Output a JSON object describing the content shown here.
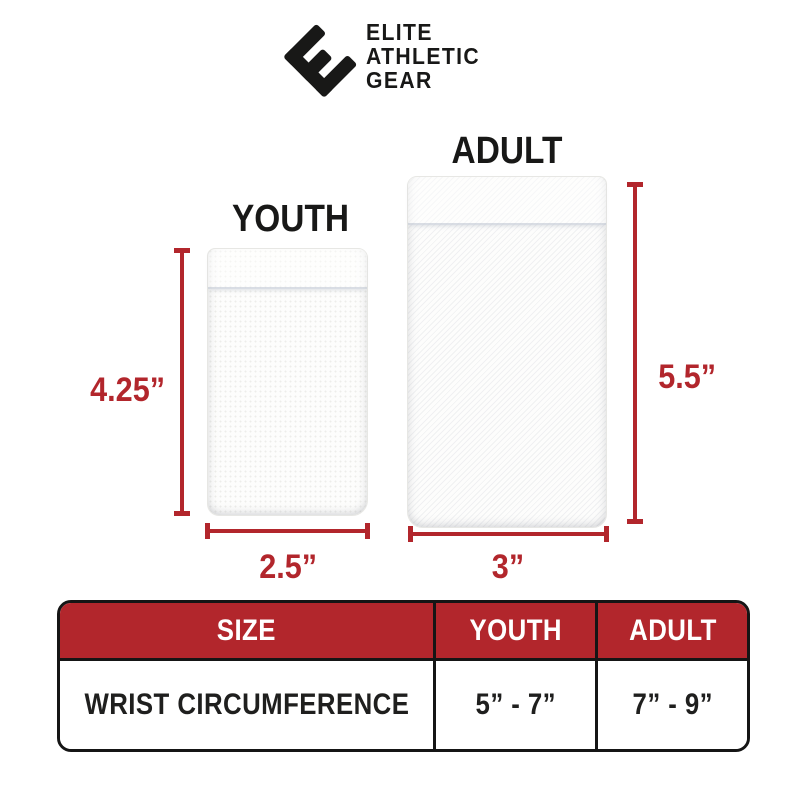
{
  "brand": {
    "icon": "elite-e-mark",
    "name_lines": [
      "ELITE",
      "ATHLETIC",
      "GEAR"
    ]
  },
  "diagram": {
    "youth": {
      "label": "YOUTH",
      "height": "4.25”",
      "width": "2.5”"
    },
    "adult": {
      "label": "ADULT",
      "height": "5.5”",
      "width": "3”"
    }
  },
  "table": {
    "columns": [
      "SIZE",
      "YOUTH",
      "ADULT"
    ],
    "rows": [
      {
        "size": "WRIST CIRCUMFERENCE",
        "youth": "5” - 7”",
        "adult": "7” - 9”"
      }
    ]
  },
  "colors": {
    "accent_red": "#b2262c",
    "ink_black": "#1d1d1b",
    "product_white": "#fdfdfc"
  }
}
